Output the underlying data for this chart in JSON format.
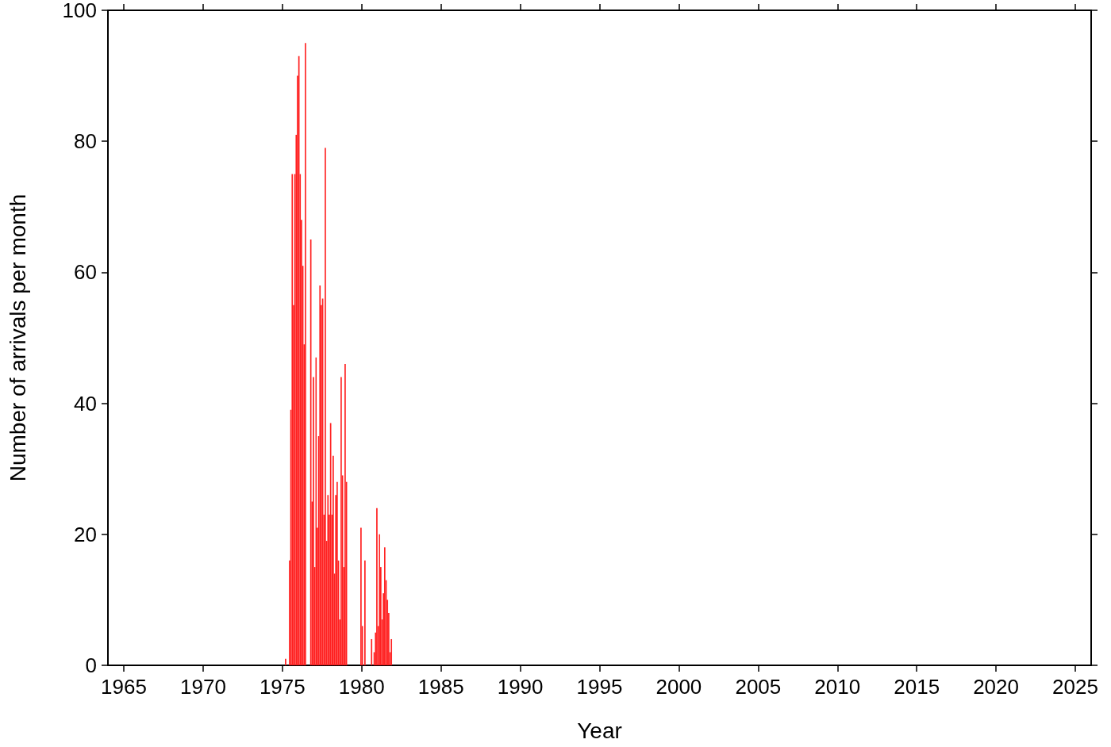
{
  "chart_data": {
    "type": "histogram",
    "xlabel": "Year",
    "ylabel": "Number of arrivals per month",
    "color": "#ff2020",
    "bins": [
      "1975-01",
      "1975-02",
      "1975-03",
      "1975-04",
      "1975-05",
      "1975-06",
      "1975-07",
      "1975-08",
      "1975-09",
      "1975-10",
      "1975-11",
      "1975-12",
      "1976-01",
      "1976-02",
      "1976-03",
      "1976-04",
      "1976-05",
      "1976-06",
      "1976-07",
      "1976-08",
      "1976-09",
      "1976-10",
      "1976-11",
      "1976-12",
      "1977-01",
      "1977-02",
      "1977-03",
      "1977-04",
      "1977-05",
      "1977-06",
      "1977-07",
      "1977-08",
      "1977-09",
      "1977-10",
      "1977-11",
      "1977-12",
      "1978-01",
      "1978-02",
      "1978-03",
      "1978-04",
      "1978-05",
      "1978-06",
      "1978-07",
      "1978-08",
      "1978-09",
      "1978-10",
      "1978-11",
      "1978-12",
      "1979-01",
      "1979-02",
      "1979-03",
      "1979-04",
      "1979-05",
      "1979-06",
      "1979-07",
      "1979-08",
      "1979-09",
      "1979-10",
      "1979-11",
      "1979-12",
      "1980-01",
      "1980-02",
      "1980-03",
      "1980-04",
      "1980-05",
      "1980-06",
      "1980-07",
      "1980-08",
      "1980-09",
      "1980-10",
      "1980-11",
      "1980-12",
      "1981-01",
      "1981-02",
      "1981-03",
      "1981-04",
      "1981-05",
      "1981-06",
      "1981-07",
      "1981-08",
      "1981-09",
      "1981-10",
      "1981-11",
      "1981-12",
      "1982-01"
    ],
    "values": [
      0,
      0,
      1,
      0,
      0,
      16,
      39,
      75,
      55,
      75,
      81,
      90,
      93,
      75,
      68,
      61,
      49,
      95,
      0,
      0,
      0,
      65,
      25,
      44,
      15,
      47,
      21,
      35,
      58,
      55,
      56,
      23,
      79,
      19,
      26,
      23,
      37,
      23,
      32,
      14,
      26,
      28,
      16,
      7,
      44,
      29,
      15,
      46,
      28,
      0,
      0,
      0,
      0,
      0,
      0,
      0,
      0,
      0,
      0,
      21,
      6,
      0,
      16,
      0,
      0,
      0,
      0,
      4,
      0,
      2,
      5,
      24,
      6,
      20,
      15,
      7,
      11,
      18,
      13,
      10,
      8,
      2,
      4,
      0
    ],
    "xlim": [
      "1964",
      "2026"
    ],
    "xticks": [
      "1965",
      "1970",
      "1975",
      "1980",
      "1985",
      "1990",
      "1995",
      "2000",
      "2005",
      "2010",
      "2015",
      "2020",
      "2025"
    ],
    "ylim": [
      0,
      100
    ],
    "yticks": [
      0,
      20,
      40,
      60,
      80,
      100
    ],
    "grid": false
  }
}
